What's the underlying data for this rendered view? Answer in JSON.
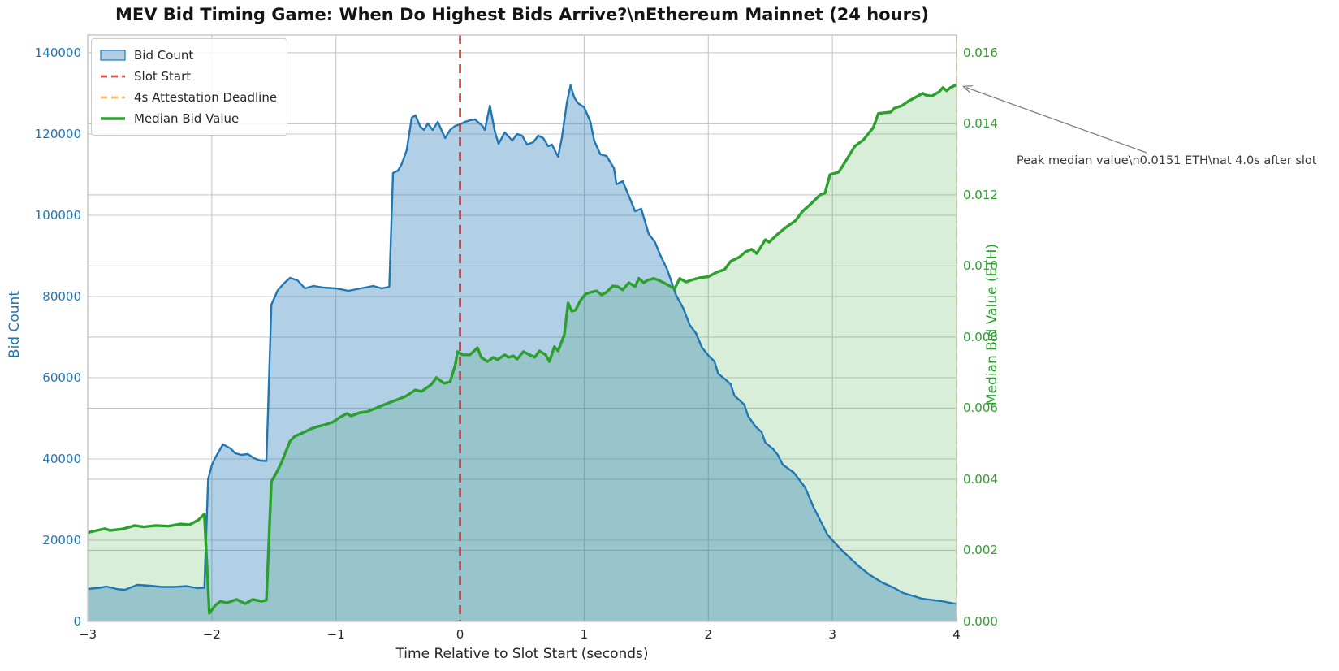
{
  "title": "MEV Bid Timing Game: When Do Highest Bids Arrive?\\nEthereum Mainnet (24 hours)",
  "colors": {
    "bid_count_line": "#1f77b4",
    "bid_count_fill": "rgba(31,119,180,0.35)",
    "median_line": "#2ca02c",
    "median_fill": "rgba(44,160,44,0.18)",
    "slot_start_line": "rgba(214,39,40,0.85)",
    "attestation_line": "rgba(255,165,0,0.8)",
    "grid": "#c8c8c8",
    "frame": "#c9c9c9",
    "x_tick": "#262626",
    "annotation_text": "#3a3a3a",
    "arrow": "#7f7f7f"
  },
  "chart_data": {
    "type": "area",
    "title": "MEV Bid Timing Game: When Do Highest Bids Arrive?\\nEthereum Mainnet (24 hours)",
    "grid": true,
    "legend_position": "upper left",
    "axes": {
      "x": {
        "label": "Time Relative to Slot Start (seconds)",
        "min": -3,
        "max": 4,
        "ticks": [
          -3,
          -2,
          -1,
          0,
          1,
          2,
          3,
          4
        ],
        "tick_labels": [
          "−3",
          "−2",
          "−1",
          "0",
          "1",
          "2",
          "3",
          "4"
        ]
      },
      "y_left": {
        "label": "Bid Count",
        "min": 0,
        "max": 144400,
        "ticks": [
          0,
          20000,
          40000,
          60000,
          80000,
          100000,
          120000,
          140000
        ],
        "tick_labels": [
          "0",
          "20000",
          "40000",
          "60000",
          "80000",
          "100000",
          "120000",
          "140000"
        ],
        "color": "#1f77b4"
      },
      "y_right": {
        "label": "Median Bid Value (ETH)",
        "min": 0,
        "max": 0.0165,
        "ticks": [
          0,
          0.002,
          0.004,
          0.006,
          0.008,
          0.01,
          0.012,
          0.014,
          0.016
        ],
        "tick_labels": [
          "0.000",
          "0.002",
          "0.004",
          "0.006",
          "0.008",
          "0.010",
          "0.012",
          "0.014",
          "0.016"
        ],
        "color": "#2ca02c"
      }
    },
    "legend": {
      "items": [
        {
          "label": "Bid Count",
          "swatch": "patch",
          "color": "#1f77b4",
          "fill": "rgba(31,119,180,0.35)"
        },
        {
          "label": "Slot Start",
          "swatch": "dashed",
          "color": "#e0504f"
        },
        {
          "label": "4s Attestation Deadline",
          "swatch": "dashed",
          "color": "#f9bc61"
        },
        {
          "label": "Median Bid Value",
          "swatch": "solid",
          "color": "#2ca02c"
        }
      ]
    },
    "reference_lines": [
      {
        "name": "Slot Start",
        "x": 0
      },
      {
        "name": "4s Attestation Deadline",
        "x": 4
      }
    ],
    "annotation": {
      "text": "Peak median value\\n0.0151 ETH\\nat 4.0s after slot",
      "peak_value_eth": 0.0151,
      "peak_time_s": 4.0
    },
    "series": [
      {
        "name": "Bid Count",
        "axis": "left",
        "color": "#1f77b4",
        "fill": "rgba(31,119,180,0.35)",
        "line_width": 2.4,
        "points": [
          [
            -3.0,
            8000
          ],
          [
            -2.9,
            8300
          ],
          [
            -2.85,
            8600
          ],
          [
            -2.75,
            7900
          ],
          [
            -2.7,
            7800
          ],
          [
            -2.6,
            9000
          ],
          [
            -2.5,
            8800
          ],
          [
            -2.4,
            8500
          ],
          [
            -2.3,
            8500
          ],
          [
            -2.2,
            8700
          ],
          [
            -2.12,
            8200
          ],
          [
            -2.06,
            8300
          ],
          [
            -2.03,
            35000
          ],
          [
            -2.0,
            38500
          ],
          [
            -1.97,
            40400
          ],
          [
            -1.91,
            43600
          ],
          [
            -1.85,
            42600
          ],
          [
            -1.81,
            41400
          ],
          [
            -1.76,
            41000
          ],
          [
            -1.71,
            41200
          ],
          [
            -1.66,
            40200
          ],
          [
            -1.61,
            39600
          ],
          [
            -1.56,
            39500
          ],
          [
            -1.52,
            78000
          ],
          [
            -1.47,
            81500
          ],
          [
            -1.42,
            83200
          ],
          [
            -1.37,
            84600
          ],
          [
            -1.31,
            84000
          ],
          [
            -1.25,
            82000
          ],
          [
            -1.18,
            82600
          ],
          [
            -1.1,
            82200
          ],
          [
            -1.0,
            82000
          ],
          [
            -0.9,
            81400
          ],
          [
            -0.8,
            82000
          ],
          [
            -0.7,
            82600
          ],
          [
            -0.63,
            82000
          ],
          [
            -0.57,
            82400
          ],
          [
            -0.54,
            110400
          ],
          [
            -0.5,
            111000
          ],
          [
            -0.47,
            112600
          ],
          [
            -0.43,
            116000
          ],
          [
            -0.39,
            124000
          ],
          [
            -0.36,
            124600
          ],
          [
            -0.32,
            121800
          ],
          [
            -0.29,
            121000
          ],
          [
            -0.26,
            122600
          ],
          [
            -0.22,
            121000
          ],
          [
            -0.18,
            123000
          ],
          [
            -0.15,
            121000
          ],
          [
            -0.12,
            119000
          ],
          [
            -0.08,
            121000
          ],
          [
            -0.04,
            122000
          ],
          [
            0.0,
            122400
          ],
          [
            0.04,
            123000
          ],
          [
            0.08,
            123400
          ],
          [
            0.12,
            123600
          ],
          [
            0.18,
            122000
          ],
          [
            0.2,
            121000
          ],
          [
            0.24,
            127000
          ],
          [
            0.28,
            120600
          ],
          [
            0.31,
            117600
          ],
          [
            0.36,
            120400
          ],
          [
            0.39,
            119400
          ],
          [
            0.42,
            118400
          ],
          [
            0.46,
            120000
          ],
          [
            0.5,
            119600
          ],
          [
            0.54,
            117400
          ],
          [
            0.59,
            118000
          ],
          [
            0.63,
            119600
          ],
          [
            0.67,
            119000
          ],
          [
            0.71,
            117000
          ],
          [
            0.74,
            117400
          ],
          [
            0.79,
            114400
          ],
          [
            0.82,
            119000
          ],
          [
            0.86,
            127600
          ],
          [
            0.89,
            132000
          ],
          [
            0.92,
            129000
          ],
          [
            0.95,
            127600
          ],
          [
            1.0,
            126600
          ],
          [
            1.05,
            123000
          ],
          [
            1.08,
            118400
          ],
          [
            1.13,
            115000
          ],
          [
            1.18,
            114600
          ],
          [
            1.24,
            111600
          ],
          [
            1.26,
            107600
          ],
          [
            1.31,
            108400
          ],
          [
            1.37,
            104000
          ],
          [
            1.41,
            101000
          ],
          [
            1.46,
            101600
          ],
          [
            1.52,
            95400
          ],
          [
            1.57,
            93400
          ],
          [
            1.61,
            90400
          ],
          [
            1.67,
            86600
          ],
          [
            1.74,
            80400
          ],
          [
            1.8,
            77000
          ],
          [
            1.85,
            73000
          ],
          [
            1.9,
            71000
          ],
          [
            1.95,
            67400
          ],
          [
            2.0,
            65500
          ],
          [
            2.05,
            64000
          ],
          [
            2.08,
            61000
          ],
          [
            2.14,
            59500
          ],
          [
            2.18,
            58400
          ],
          [
            2.21,
            55600
          ],
          [
            2.29,
            53400
          ],
          [
            2.32,
            50600
          ],
          [
            2.38,
            48000
          ],
          [
            2.43,
            46600
          ],
          [
            2.46,
            44000
          ],
          [
            2.52,
            42500
          ],
          [
            2.56,
            41000
          ],
          [
            2.6,
            38600
          ],
          [
            2.69,
            36600
          ],
          [
            2.78,
            33000
          ],
          [
            2.85,
            28000
          ],
          [
            2.9,
            25000
          ],
          [
            2.96,
            21400
          ],
          [
            3.0,
            20000
          ],
          [
            3.08,
            17400
          ],
          [
            3.15,
            15400
          ],
          [
            3.22,
            13400
          ],
          [
            3.3,
            11500
          ],
          [
            3.4,
            9600
          ],
          [
            3.5,
            8200
          ],
          [
            3.57,
            7000
          ],
          [
            3.65,
            6300
          ],
          [
            3.72,
            5600
          ],
          [
            3.8,
            5300
          ],
          [
            3.88,
            5000
          ],
          [
            4.0,
            4300
          ]
        ]
      },
      {
        "name": "Median Bid Value",
        "axis": "right",
        "color": "#2ca02c",
        "fill": "rgba(44,160,44,0.18)",
        "line_width": 3.4,
        "points": [
          [
            -3.0,
            0.0025
          ],
          [
            -2.9,
            0.00258
          ],
          [
            -2.86,
            0.00261
          ],
          [
            -2.82,
            0.00256
          ],
          [
            -2.72,
            0.0026
          ],
          [
            -2.62,
            0.0027
          ],
          [
            -2.55,
            0.00266
          ],
          [
            -2.45,
            0.0027
          ],
          [
            -2.35,
            0.00268
          ],
          [
            -2.25,
            0.00274
          ],
          [
            -2.18,
            0.00272
          ],
          [
            -2.11,
            0.00285
          ],
          [
            -2.06,
            0.00302
          ],
          [
            -2.02,
            0.00023
          ],
          [
            -1.97,
            0.00046
          ],
          [
            -1.93,
            0.00057
          ],
          [
            -1.88,
            0.00052
          ],
          [
            -1.8,
            0.00062
          ],
          [
            -1.73,
            0.0005
          ],
          [
            -1.67,
            0.00062
          ],
          [
            -1.6,
            0.00057
          ],
          [
            -1.56,
            0.0006
          ],
          [
            -1.52,
            0.00393
          ],
          [
            -1.48,
            0.00418
          ],
          [
            -1.44,
            0.00446
          ],
          [
            -1.37,
            0.00507
          ],
          [
            -1.33,
            0.00521
          ],
          [
            -1.27,
            0.0053
          ],
          [
            -1.2,
            0.00542
          ],
          [
            -1.14,
            0.00549
          ],
          [
            -1.09,
            0.00553
          ],
          [
            -1.03,
            0.0056
          ],
          [
            -0.96,
            0.00576
          ],
          [
            -0.91,
            0.00585
          ],
          [
            -0.88,
            0.00578
          ],
          [
            -0.81,
            0.00587
          ],
          [
            -0.75,
            0.0059
          ],
          [
            -0.67,
            0.00601
          ],
          [
            -0.61,
            0.0061
          ],
          [
            -0.52,
            0.00622
          ],
          [
            -0.44,
            0.00633
          ],
          [
            -0.36,
            0.00651
          ],
          [
            -0.31,
            0.00647
          ],
          [
            -0.23,
            0.00667
          ],
          [
            -0.19,
            0.00686
          ],
          [
            -0.13,
            0.0067
          ],
          [
            -0.08,
            0.00674
          ],
          [
            -0.04,
            0.0072
          ],
          [
            -0.02,
            0.00759
          ],
          [
            0.02,
            0.0075
          ],
          [
            0.08,
            0.0075
          ],
          [
            0.14,
            0.0077
          ],
          [
            0.17,
            0.00743
          ],
          [
            0.22,
            0.00731
          ],
          [
            0.27,
            0.00743
          ],
          [
            0.3,
            0.00736
          ],
          [
            0.36,
            0.0075
          ],
          [
            0.39,
            0.00743
          ],
          [
            0.43,
            0.00747
          ],
          [
            0.46,
            0.00738
          ],
          [
            0.51,
            0.00759
          ],
          [
            0.56,
            0.0075
          ],
          [
            0.6,
            0.00743
          ],
          [
            0.64,
            0.00761
          ],
          [
            0.69,
            0.0075
          ],
          [
            0.72,
            0.00731
          ],
          [
            0.76,
            0.00773
          ],
          [
            0.79,
            0.00761
          ],
          [
            0.84,
            0.00807
          ],
          [
            0.87,
            0.00896
          ],
          [
            0.9,
            0.00873
          ],
          [
            0.93,
            0.00876
          ],
          [
            0.97,
            0.00903
          ],
          [
            1.01,
            0.00921
          ],
          [
            1.05,
            0.00926
          ],
          [
            1.1,
            0.0093
          ],
          [
            1.14,
            0.00919
          ],
          [
            1.18,
            0.00926
          ],
          [
            1.23,
            0.00944
          ],
          [
            1.27,
            0.00942
          ],
          [
            1.31,
            0.00933
          ],
          [
            1.36,
            0.00953
          ],
          [
            1.41,
            0.00942
          ],
          [
            1.44,
            0.00965
          ],
          [
            1.48,
            0.00953
          ],
          [
            1.51,
            0.0096
          ],
          [
            1.56,
            0.00965
          ],
          [
            1.6,
            0.0096
          ],
          [
            1.64,
            0.00953
          ],
          [
            1.7,
            0.00942
          ],
          [
            1.73,
            0.00937
          ],
          [
            1.77,
            0.00965
          ],
          [
            1.82,
            0.00955
          ],
          [
            1.86,
            0.0096
          ],
          [
            1.93,
            0.00967
          ],
          [
            2.0,
            0.0097
          ],
          [
            2.07,
            0.00983
          ],
          [
            2.13,
            0.0099
          ],
          [
            2.18,
            0.01013
          ],
          [
            2.25,
            0.01025
          ],
          [
            2.3,
            0.0104
          ],
          [
            2.35,
            0.01047
          ],
          [
            2.39,
            0.01035
          ],
          [
            2.46,
            0.01074
          ],
          [
            2.49,
            0.01067
          ],
          [
            2.56,
            0.0109
          ],
          [
            2.63,
            0.0111
          ],
          [
            2.7,
            0.01127
          ],
          [
            2.76,
            0.01154
          ],
          [
            2.83,
            0.01176
          ],
          [
            2.9,
            0.012
          ],
          [
            2.94,
            0.01205
          ],
          [
            2.98,
            0.01257
          ],
          [
            3.05,
            0.01264
          ],
          [
            3.1,
            0.01291
          ],
          [
            3.18,
            0.01337
          ],
          [
            3.2,
            0.01342
          ],
          [
            3.25,
            0.01355
          ],
          [
            3.33,
            0.0139
          ],
          [
            3.37,
            0.01429
          ],
          [
            3.47,
            0.01433
          ],
          [
            3.5,
            0.01444
          ],
          [
            3.56,
            0.01451
          ],
          [
            3.61,
            0.01463
          ],
          [
            3.73,
            0.01486
          ],
          [
            3.75,
            0.01481
          ],
          [
            3.8,
            0.01478
          ],
          [
            3.86,
            0.0149
          ],
          [
            3.89,
            0.01502
          ],
          [
            3.92,
            0.01493
          ],
          [
            3.95,
            0.01502
          ],
          [
            4.0,
            0.0151
          ]
        ]
      }
    ]
  }
}
